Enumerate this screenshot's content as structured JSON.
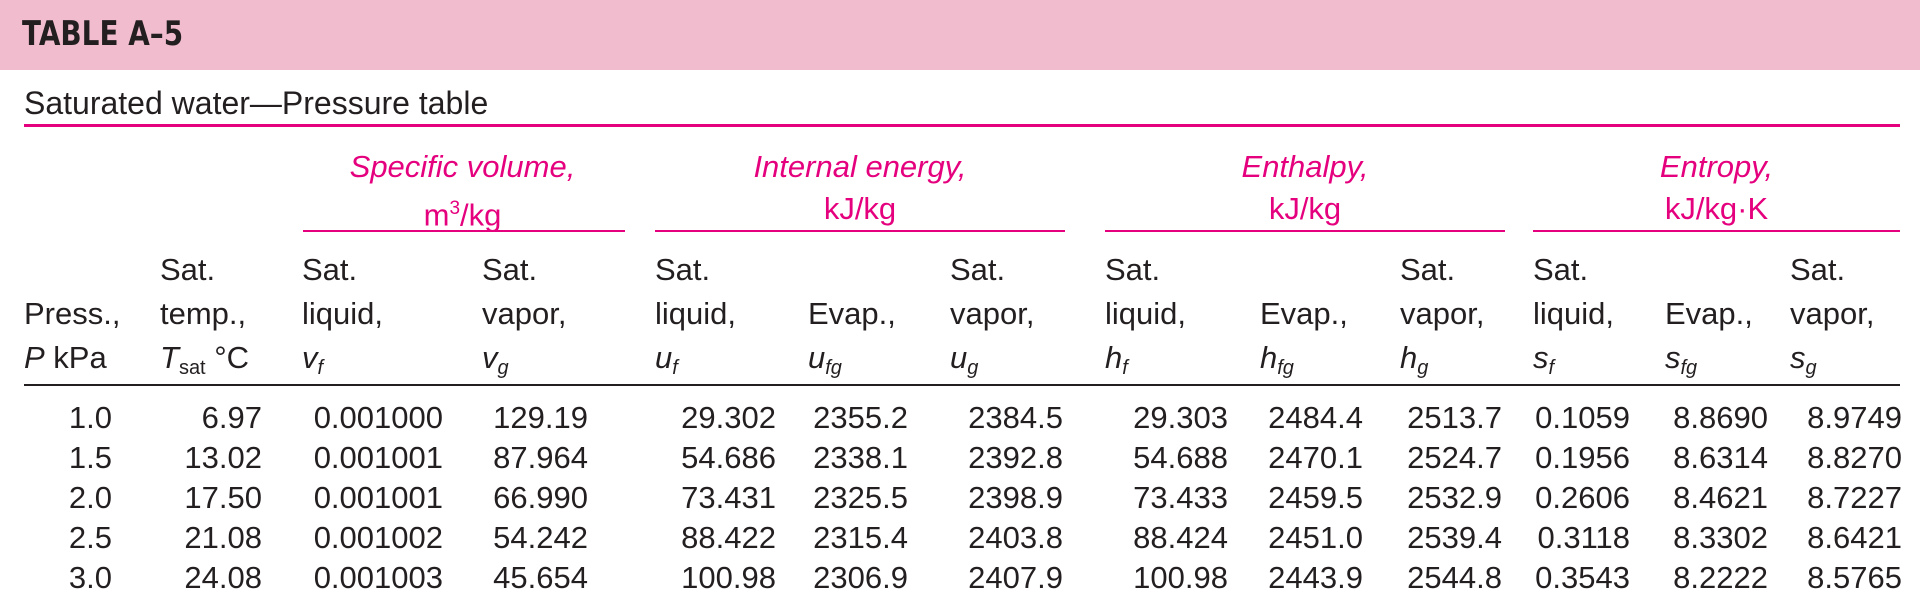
{
  "title": "TABLE A–5",
  "subtitle": "Saturated water—Pressure table",
  "groups": [
    {
      "name": "Specific volume,",
      "unit_base": "m",
      "unit_sup": "3",
      "unit_rest": "/kg"
    },
    {
      "name": "Internal energy,",
      "unit": "kJ/kg"
    },
    {
      "name": "Enthalpy,",
      "unit": "kJ/kg"
    },
    {
      "name": "Entropy,",
      "unit": "kJ/kg·K"
    }
  ],
  "columns": [
    {
      "l1": "",
      "l2": "Press.,",
      "sym": "P",
      "sym_sub": "",
      "tail": " kPa"
    },
    {
      "l1": "Sat.",
      "l2": "temp.,",
      "sym": "T",
      "sym_sub": "sat",
      "tail": " °C"
    },
    {
      "l1": "Sat.",
      "l2": "liquid,",
      "sym": "v",
      "sym_sub": "f",
      "tail": ""
    },
    {
      "l1": "Sat.",
      "l2": "vapor,",
      "sym": "v",
      "sym_sub": "g",
      "tail": ""
    },
    {
      "l1": "Sat.",
      "l2": "liquid,",
      "sym": "u",
      "sym_sub": "f",
      "tail": ""
    },
    {
      "l1": "",
      "l2": "Evap.,",
      "sym": "u",
      "sym_sub": "fg",
      "tail": ""
    },
    {
      "l1": "Sat.",
      "l2": "vapor,",
      "sym": "u",
      "sym_sub": "g",
      "tail": ""
    },
    {
      "l1": "Sat.",
      "l2": "liquid,",
      "sym": "h",
      "sym_sub": "f",
      "tail": ""
    },
    {
      "l1": "",
      "l2": "Evap.,",
      "sym": "h",
      "sym_sub": "fg",
      "tail": ""
    },
    {
      "l1": "Sat.",
      "l2": "vapor,",
      "sym": "h",
      "sym_sub": "g",
      "tail": ""
    },
    {
      "l1": "Sat.",
      "l2": "liquid,",
      "sym": "s",
      "sym_sub": "f",
      "tail": ""
    },
    {
      "l1": "",
      "l2": "Evap.,",
      "sym": "s",
      "sym_sub": "fg",
      "tail": ""
    },
    {
      "l1": "Sat.",
      "l2": "vapor,",
      "sym": "s",
      "sym_sub": "g",
      "tail": ""
    }
  ],
  "rows": [
    [
      "1.0",
      "6.97",
      "0.001000",
      "129.19",
      "29.302",
      "2355.2",
      "2384.5",
      "29.303",
      "2484.4",
      "2513.7",
      "0.1059",
      "8.8690",
      "8.9749"
    ],
    [
      "1.5",
      "13.02",
      "0.001001",
      "87.964",
      "54.686",
      "2338.1",
      "2392.8",
      "54.688",
      "2470.1",
      "2524.7",
      "0.1956",
      "8.6314",
      "8.8270"
    ],
    [
      "2.0",
      "17.50",
      "0.001001",
      "66.990",
      "73.431",
      "2325.5",
      "2398.9",
      "73.433",
      "2459.5",
      "2532.9",
      "0.2606",
      "8.4621",
      "8.7227"
    ],
    [
      "2.5",
      "21.08",
      "0.001002",
      "54.242",
      "88.422",
      "2315.4",
      "2403.8",
      "88.424",
      "2451.0",
      "2539.4",
      "0.3118",
      "8.3302",
      "8.6421"
    ],
    [
      "3.0",
      "24.08",
      "0.001003",
      "45.654",
      "100.98",
      "2306.9",
      "2407.9",
      "100.98",
      "2443.9",
      "2544.8",
      "0.3543",
      "8.2222",
      "8.5765"
    ]
  ]
}
